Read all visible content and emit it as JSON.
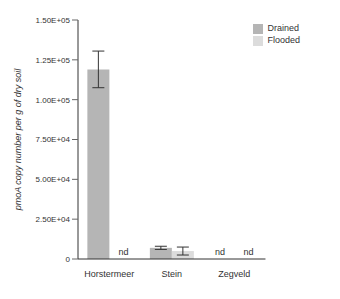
{
  "chart_data": {
    "type": "bar",
    "y_label": "pmoA copy number per g of dry soil",
    "categories": [
      "Horstermeer",
      "Stein",
      "Zegveld"
    ],
    "series": [
      {
        "name": "Drained",
        "color": "#b5b5b5",
        "values": [
          119000,
          7000,
          null
        ],
        "errors": [
          11500,
          1000,
          null
        ],
        "value_labels": [
          null,
          null,
          "nd"
        ]
      },
      {
        "name": "Flooded",
        "color": "#dcdcdc",
        "values": [
          null,
          5000,
          null
        ],
        "errors": [
          null,
          2500,
          null
        ],
        "value_labels": [
          "nd",
          null,
          "nd"
        ]
      }
    ],
    "ylim": [
      0,
      150000
    ],
    "yticks": [
      0,
      {
        "value": 25000,
        "label": "2.50E+04"
      },
      {
        "value": 50000,
        "label": "5.00E+04"
      },
      {
        "value": 75000,
        "label": "7.50E+04"
      },
      {
        "value": 100000,
        "label": "1.00E+05"
      },
      {
        "value": 125000,
        "label": "1.25E+05"
      },
      {
        "value": 150000,
        "label": "1.50E+05"
      }
    ],
    "grid": false,
    "legend": "upper right"
  }
}
